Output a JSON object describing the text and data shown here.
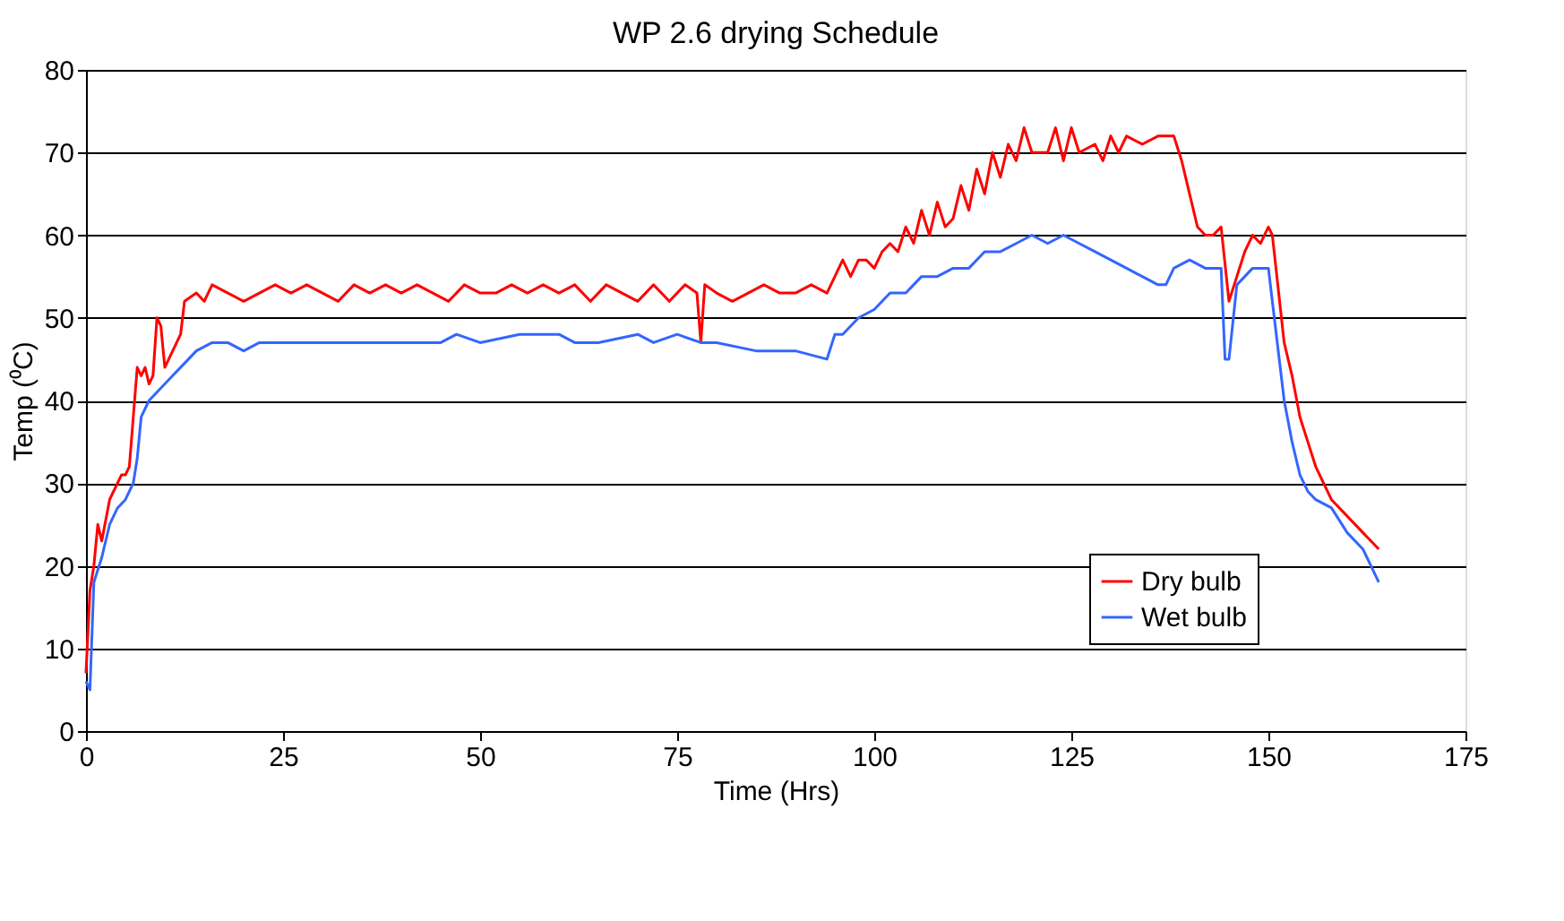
{
  "chart_data": {
    "type": "line",
    "title": "WP 2.6 drying Schedule",
    "xlabel": "Time (Hrs)",
    "ylabel": "Temp (⁰C)",
    "xlim": [
      0,
      175
    ],
    "xticks": [
      0,
      25,
      50,
      75,
      100,
      125,
      150,
      175
    ],
    "ylim": [
      0,
      80
    ],
    "yticks": [
      0,
      10,
      20,
      30,
      40,
      50,
      60,
      70,
      80
    ],
    "grid": "y",
    "legend": "bottom right",
    "line_style": "solid",
    "marker": "none",
    "series": [
      {
        "name": "Dry bulb",
        "color": "#ff0000",
        "x": [
          0,
          0.5,
          1,
          1.5,
          2,
          3,
          4,
          4.5,
          5,
          5.5,
          6,
          6.5,
          7,
          7.5,
          8,
          8.5,
          9,
          9.5,
          10,
          11,
          12,
          12.5,
          14,
          15,
          16,
          18,
          20,
          22,
          24,
          26,
          28,
          30,
          32,
          34,
          36,
          38,
          40,
          42,
          44,
          46,
          48,
          50,
          52,
          54,
          56,
          58,
          60,
          62,
          64,
          66,
          68,
          70,
          72,
          74,
          76,
          77.5,
          78,
          78.5,
          80,
          82,
          84,
          86,
          88,
          90,
          92,
          94,
          95,
          96,
          97,
          98,
          99,
          100,
          101,
          102,
          103,
          104,
          105,
          106,
          107,
          108,
          109,
          110,
          111,
          112,
          113,
          114,
          115,
          116,
          117,
          118,
          119,
          120,
          122,
          123,
          124,
          125,
          126,
          128,
          129,
          130,
          131,
          132,
          134,
          136,
          138,
          139,
          140,
          141,
          142,
          143,
          144,
          145,
          146,
          147,
          148,
          149,
          150,
          150.5,
          152,
          153,
          154,
          155,
          156,
          157,
          158,
          160,
          162,
          163,
          164
        ],
        "values": [
          7,
          17,
          20,
          25,
          23,
          28,
          30,
          31,
          31,
          32,
          38,
          44,
          43,
          44,
          42,
          43,
          50,
          49,
          44,
          46,
          48,
          52,
          53,
          52,
          54,
          53,
          52,
          53,
          54,
          53,
          54,
          53,
          52,
          54,
          53,
          54,
          53,
          54,
          53,
          52,
          54,
          53,
          53,
          54,
          53,
          54,
          53,
          54,
          52,
          54,
          53,
          52,
          54,
          52,
          54,
          53,
          47,
          54,
          53,
          52,
          53,
          54,
          53,
          53,
          54,
          53,
          55,
          57,
          55,
          57,
          57,
          56,
          58,
          59,
          58,
          61,
          59,
          63,
          60,
          64,
          61,
          62,
          66,
          63,
          68,
          65,
          70,
          67,
          71,
          69,
          73,
          70,
          70,
          73,
          69,
          73,
          70,
          71,
          69,
          72,
          70,
          72,
          71,
          72,
          72,
          69,
          65,
          61,
          60,
          60,
          61,
          52,
          55,
          58,
          60,
          59,
          61,
          60,
          47,
          43,
          38,
          35,
          32,
          30,
          28,
          26,
          24,
          23,
          22
        ]
      },
      {
        "name": "Wet bulb",
        "color": "#3366ff",
        "x": [
          0,
          0.5,
          1,
          2,
          3,
          4,
          5,
          6,
          6.5,
          7,
          8,
          9,
          10,
          11,
          12,
          13,
          14,
          16,
          18,
          20,
          22,
          24,
          26,
          28,
          30,
          35,
          40,
          45,
          47,
          50,
          55,
          60,
          62,
          65,
          70,
          72,
          75,
          78,
          80,
          85,
          90,
          94,
          95,
          96,
          98,
          100,
          102,
          104,
          106,
          108,
          110,
          112,
          114,
          116,
          118,
          120,
          122,
          124,
          126,
          128,
          130,
          132,
          134,
          136,
          137,
          138,
          140,
          142,
          144,
          144.5,
          145,
          146,
          148,
          150,
          151,
          152,
          153,
          154,
          155,
          156,
          158,
          160,
          162,
          164
        ],
        "values": [
          6,
          5,
          18,
          21,
          25,
          27,
          28,
          30,
          33,
          38,
          40,
          41,
          42,
          43,
          44,
          45,
          46,
          47,
          47,
          46,
          47,
          47,
          47,
          47,
          47,
          47,
          47,
          47,
          48,
          47,
          48,
          48,
          47,
          47,
          48,
          47,
          48,
          47,
          47,
          46,
          46,
          45,
          48,
          48,
          50,
          51,
          53,
          53,
          55,
          55,
          56,
          56,
          58,
          58,
          59,
          60,
          59,
          60,
          59,
          58,
          57,
          56,
          55,
          54,
          54,
          56,
          57,
          56,
          56,
          45,
          45,
          54,
          56,
          56,
          48,
          40,
          35,
          31,
          29,
          28,
          27,
          24,
          22,
          18
        ]
      }
    ]
  }
}
